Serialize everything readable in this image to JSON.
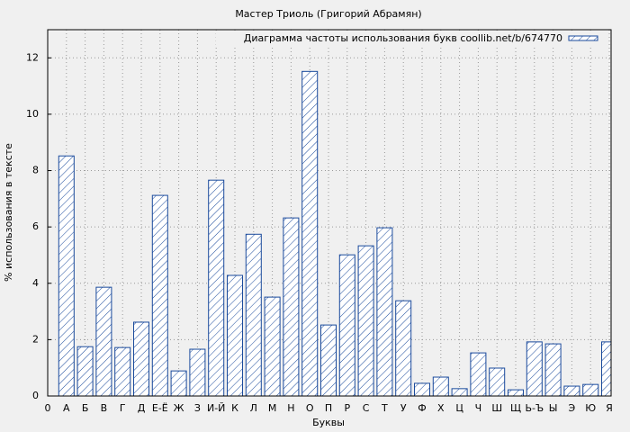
{
  "chart_data": {
    "type": "bar",
    "title": "Мастер Триоль (Григорий Абрамян)",
    "x_label": "Буквы",
    "y_label": "% использования в тексте",
    "categories": [
      "0",
      "А",
      "Б",
      "В",
      "Г",
      "Д",
      "Е-Ё",
      "Ж",
      "З",
      "И-Й",
      "К",
      "Л",
      "М",
      "Н",
      "О",
      "П",
      "Р",
      "С",
      "Т",
      "У",
      "Ф",
      "Х",
      "Ц",
      "Ч",
      "Ш",
      "Щ",
      "Ь-Ъ",
      "Ы",
      "Э",
      "Ю",
      "Я"
    ],
    "series": [
      {
        "name": "Диаграмма частоты использования букв coollib.net/b/674770",
        "color": "#1a4a9c",
        "values": [
          null,
          8.52,
          1.75,
          3.86,
          1.72,
          2.62,
          7.12,
          0.89,
          1.66,
          7.66,
          4.28,
          5.74,
          3.51,
          6.32,
          11.52,
          2.52,
          5.01,
          5.33,
          5.97,
          3.38,
          0.45,
          0.67,
          0.26,
          1.53,
          0.99,
          0.22,
          1.92,
          1.85,
          0.35,
          0.41,
          1.92
        ]
      }
    ],
    "ylim": [
      0,
      13
    ],
    "yticks": [
      0,
      2,
      4,
      6,
      8,
      10,
      12
    ],
    "grid": true,
    "legend": "top-right"
  }
}
